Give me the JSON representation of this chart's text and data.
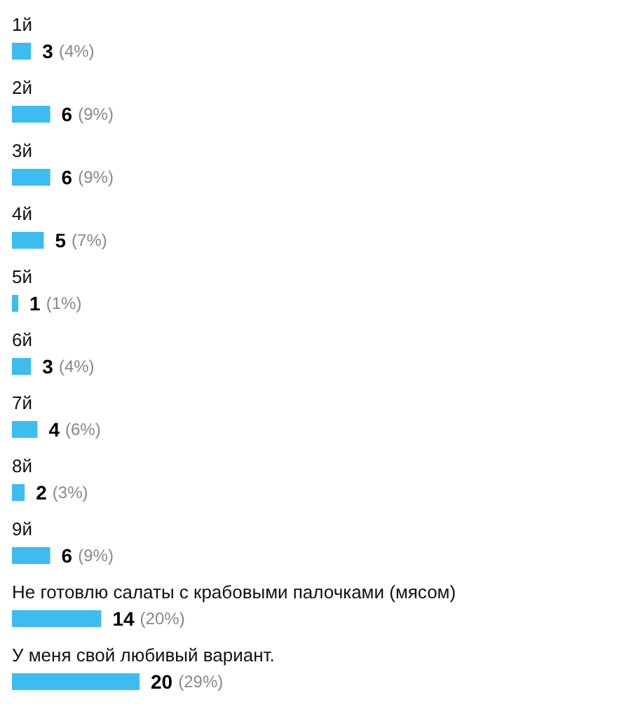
{
  "chart_data": {
    "type": "bar",
    "orientation": "horizontal",
    "categories": [
      "1й",
      "2й",
      "3й",
      "4й",
      "5й",
      "6й",
      "7й",
      "8й",
      "9й",
      "Не готовлю салаты с крабовыми палочками (мясом)",
      "У меня свой любивый вариант."
    ],
    "values": [
      3,
      6,
      6,
      5,
      1,
      3,
      4,
      2,
      6,
      14,
      20
    ],
    "data_labels": true,
    "annotations": [
      {
        "text": "(4%)",
        "x": 3,
        "y": "1й"
      },
      {
        "text": "(9%)",
        "x": 6,
        "y": "2й"
      },
      {
        "text": "(9%)",
        "x": 6,
        "y": "3й"
      },
      {
        "text": "(7%)",
        "x": 5,
        "y": "4й"
      },
      {
        "text": "(1%)",
        "x": 1,
        "y": "5й"
      },
      {
        "text": "(4%)",
        "x": 3,
        "y": "6й"
      },
      {
        "text": "(6%)",
        "x": 4,
        "y": "7й"
      },
      {
        "text": "(3%)",
        "x": 2,
        "y": "8й"
      },
      {
        "text": "(9%)",
        "x": 6,
        "y": "9й"
      },
      {
        "text": "(20%)",
        "x": 14,
        "y": "Не готовлю салаты с крабовыми палочками (мясом)"
      },
      {
        "text": "(29%)",
        "x": 20,
        "y": "У меня свой любивый вариант."
      }
    ],
    "color": "#3dbcf0",
    "grid": false
  }
}
